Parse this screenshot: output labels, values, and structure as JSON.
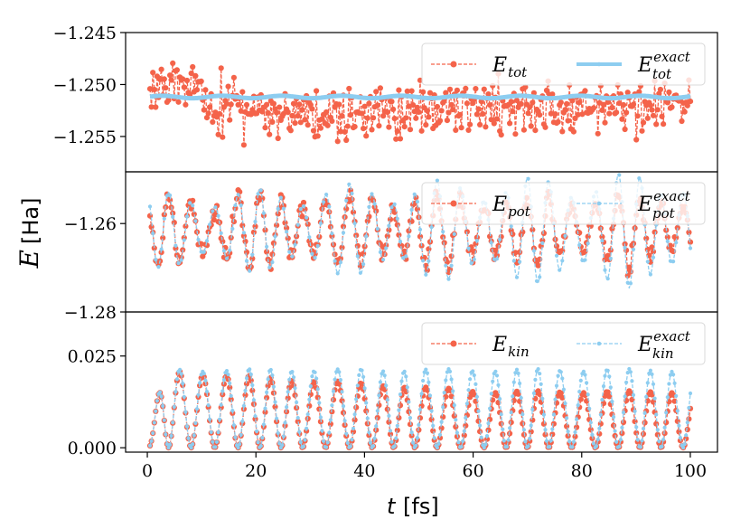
{
  "figure": {
    "xlabel_var": "t",
    "xlabel_unit": "[fs]",
    "ylabel_var": "E",
    "ylabel_unit": "[Ha]"
  },
  "colors": {
    "approx": "#f4634a",
    "exact": "#8dcdf0",
    "frame": "#000000"
  },
  "chart_data": [
    {
      "type": "line",
      "panel": "total",
      "xlim": [
        -4,
        105
      ],
      "ylim": [
        -1.2584,
        -1.245
      ],
      "yticks": [
        -1.245,
        -1.25,
        -1.255
      ],
      "ytick_labels": [
        "−1.245",
        "−1.250",
        "−1.255"
      ],
      "xticks": [
        0,
        20,
        40,
        60,
        80,
        100
      ],
      "xtick_labels": [
        "0",
        "20",
        "40",
        "60",
        "80",
        "100"
      ],
      "legend_loc": "upper right",
      "series": [
        {
          "name": "E_tot",
          "base": "E",
          "sub": "tot",
          "sup": "",
          "style": "dashed-dot",
          "color_key": "approx",
          "model": {
            "mean": -1.2521,
            "noise": 0.0019,
            "drift": [
              [
                0,
                1.5
              ],
              [
                10,
                1.8
              ],
              [
                11,
                -0.2
              ],
              [
                50,
                -0.8
              ],
              [
                60,
                -0.1
              ],
              [
                100,
                0.2
              ]
            ]
          }
        },
        {
          "name": "E_tot^exact",
          "base": "E",
          "sub": "tot",
          "sup": "exact",
          "style": "solid-thick",
          "color_key": "exact",
          "model": {
            "mean": -1.2512,
            "ripple": 0.00012
          }
        }
      ]
    },
    {
      "type": "line",
      "panel": "potential",
      "xlim": [
        -4,
        105
      ],
      "ylim": [
        -1.28,
        -1.2483
      ],
      "yticks": [
        -1.26,
        -1.28
      ],
      "ytick_labels": [
        "−1.26",
        "−1.28"
      ],
      "legend_loc": "upper right",
      "series": [
        {
          "name": "E_pot",
          "base": "E",
          "sub": "pot",
          "sup": "",
          "style": "dashed-dot",
          "color_key": "approx",
          "model": {
            "center": -1.2615,
            "amp_start": 0.0085,
            "amp_end": 0.0085,
            "noise": 0.0014
          }
        },
        {
          "name": "E_pot^exact",
          "base": "E",
          "sub": "pot",
          "sup": "exact",
          "style": "dashed-dot",
          "color_key": "exact",
          "model": {
            "center": -1.2615,
            "amp_start": 0.0085,
            "amp_end": 0.0138
          }
        }
      ]
    },
    {
      "type": "line",
      "panel": "kinetic",
      "xlim": [
        -4,
        105
      ],
      "ylim": [
        -0.0012,
        0.037
      ],
      "yticks": [
        0.025,
        0.0
      ],
      "ytick_labels": [
        "0.025",
        "0.000"
      ],
      "legend_loc": "upper right",
      "series": [
        {
          "name": "E_kin",
          "base": "E",
          "sub": "kin",
          "sup": "",
          "style": "dashed-dot",
          "color_key": "approx",
          "model": {
            "peak_start": 0.0215,
            "peak_end": 0.0155
          }
        },
        {
          "name": "E_kin^exact",
          "base": "E",
          "sub": "kin",
          "sup": "exact",
          "style": "dashed-dot",
          "color_key": "exact",
          "model": {
            "peak_start": 0.0215,
            "peak_end": 0.0215
          }
        }
      ]
    }
  ]
}
